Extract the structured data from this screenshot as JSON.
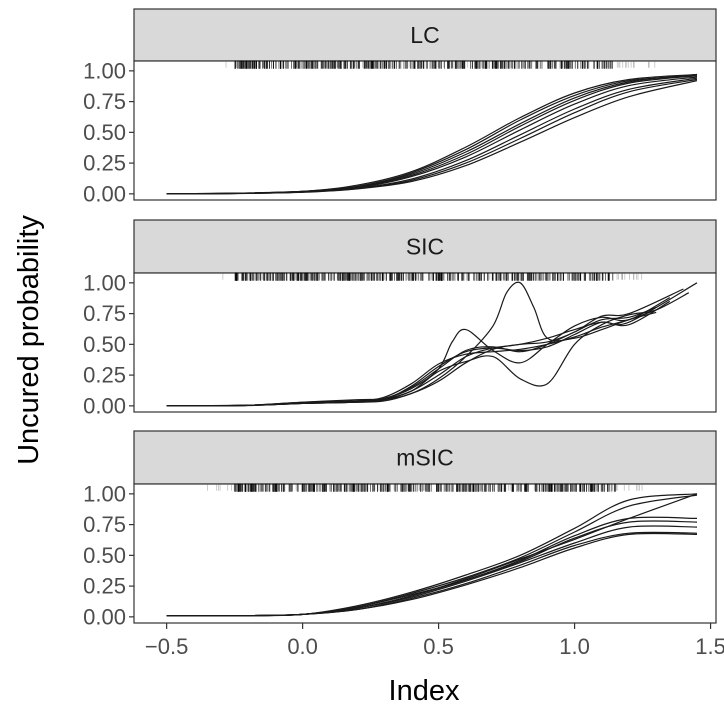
{
  "chart_data": {
    "type": "line",
    "xlabel": "Index",
    "ylabel": "Uncured probability",
    "xlim": [
      -0.62,
      1.52
    ],
    "ylim": [
      -0.05,
      1.08
    ],
    "x_ticks": [
      -0.5,
      0.0,
      0.5,
      1.0,
      1.5
    ],
    "x_tick_labels": [
      "−0.5",
      "0.0",
      "0.5",
      "1.0",
      "1.5"
    ],
    "y_ticks": [
      0.0,
      0.25,
      0.5,
      0.75,
      1.0
    ],
    "y_tick_labels": [
      "0.00",
      "0.25",
      "0.50",
      "0.75",
      "1.00"
    ],
    "grid": false,
    "rug": {
      "y": 1.05,
      "sparse_range": [
        -0.3,
        1.3
      ],
      "dense_range": [
        -0.25,
        1.15
      ]
    },
    "panels": [
      {
        "label": "LC",
        "rug_dense_range": [
          -0.25,
          1.15
        ],
        "rug_sparse_range": [
          -0.3,
          1.3
        ],
        "series": [
          {
            "x": [
              -0.5,
              -0.25,
              0.0,
              0.2,
              0.4,
              0.6,
              0.8,
              1.0,
              1.2,
              1.45
            ],
            "values": [
              0.0,
              0.005,
              0.02,
              0.07,
              0.18,
              0.38,
              0.62,
              0.82,
              0.93,
              0.97
            ]
          },
          {
            "x": [
              -0.5,
              -0.25,
              0.0,
              0.2,
              0.4,
              0.6,
              0.8,
              1.0,
              1.2,
              1.45
            ],
            "values": [
              0.0,
              0.005,
              0.02,
              0.06,
              0.17,
              0.36,
              0.6,
              0.8,
              0.92,
              0.96
            ]
          },
          {
            "x": [
              -0.5,
              -0.25,
              0.0,
              0.2,
              0.4,
              0.6,
              0.8,
              1.0,
              1.2,
              1.45
            ],
            "values": [
              0.0,
              0.004,
              0.02,
              0.06,
              0.16,
              0.34,
              0.57,
              0.78,
              0.91,
              0.97
            ]
          },
          {
            "x": [
              -0.5,
              -0.25,
              0.0,
              0.2,
              0.4,
              0.6,
              0.8,
              1.0,
              1.2,
              1.45
            ],
            "values": [
              0.0,
              0.004,
              0.018,
              0.055,
              0.15,
              0.32,
              0.55,
              0.76,
              0.9,
              0.96
            ]
          },
          {
            "x": [
              -0.5,
              -0.25,
              0.0,
              0.2,
              0.4,
              0.6,
              0.8,
              1.0,
              1.2,
              1.45
            ],
            "values": [
              0.0,
              0.004,
              0.017,
              0.05,
              0.14,
              0.3,
              0.52,
              0.73,
              0.88,
              0.95
            ]
          },
          {
            "x": [
              -0.5,
              -0.25,
              0.0,
              0.2,
              0.4,
              0.6,
              0.8,
              1.0,
              1.2,
              1.45
            ],
            "values": [
              0.0,
              0.003,
              0.015,
              0.045,
              0.12,
              0.27,
              0.48,
              0.69,
              0.85,
              0.94
            ]
          },
          {
            "x": [
              -0.5,
              -0.25,
              0.0,
              0.2,
              0.4,
              0.6,
              0.8,
              1.0,
              1.2,
              1.45
            ],
            "values": [
              0.0,
              0.003,
              0.014,
              0.042,
              0.11,
              0.25,
              0.45,
              0.66,
              0.83,
              0.93
            ]
          },
          {
            "x": [
              -0.5,
              -0.25,
              0.0,
              0.2,
              0.4,
              0.6,
              0.8,
              1.0,
              1.2,
              1.45
            ],
            "values": [
              0.0,
              0.003,
              0.013,
              0.04,
              0.1,
              0.23,
              0.42,
              0.62,
              0.79,
              0.92
            ]
          }
        ]
      },
      {
        "label": "SIC",
        "rug_dense_range": [
          -0.25,
          1.15
        ],
        "rug_sparse_range": [
          -0.3,
          1.3
        ],
        "series": [
          {
            "x": [
              -0.5,
              -0.2,
              0.0,
              0.2,
              0.3,
              0.4,
              0.5,
              0.6,
              0.7,
              0.8,
              0.9,
              1.0,
              1.1,
              1.2,
              1.3
            ],
            "values": [
              0.0,
              0.005,
              0.03,
              0.04,
              0.06,
              0.15,
              0.3,
              0.45,
              0.48,
              0.44,
              0.5,
              0.6,
              0.7,
              0.72,
              0.8
            ]
          },
          {
            "x": [
              -0.5,
              -0.2,
              0.0,
              0.2,
              0.3,
              0.4,
              0.5,
              0.6,
              0.7,
              0.8,
              0.9,
              1.0,
              1.1,
              1.2,
              1.35
            ],
            "values": [
              0.0,
              0.005,
              0.02,
              0.03,
              0.05,
              0.12,
              0.25,
              0.4,
              0.47,
              0.5,
              0.55,
              0.62,
              0.68,
              0.66,
              0.85
            ]
          },
          {
            "x": [
              -0.5,
              -0.2,
              0.0,
              0.2,
              0.3,
              0.4,
              0.5,
              0.55,
              0.6,
              0.7,
              0.8,
              0.9,
              1.0,
              1.1,
              1.2,
              1.35
            ],
            "values": [
              0.0,
              0.004,
              0.025,
              0.035,
              0.06,
              0.14,
              0.3,
              0.52,
              0.62,
              0.45,
              0.35,
              0.5,
              0.65,
              0.72,
              0.7,
              0.88
            ]
          },
          {
            "x": [
              -0.5,
              -0.2,
              0.0,
              0.2,
              0.3,
              0.4,
              0.5,
              0.6,
              0.7,
              0.8,
              0.9,
              1.0,
              1.1,
              1.2,
              1.4
            ],
            "values": [
              0.0,
              0.003,
              0.02,
              0.03,
              0.04,
              0.1,
              0.2,
              0.35,
              0.46,
              0.5,
              0.52,
              0.6,
              0.73,
              0.75,
              0.95
            ]
          },
          {
            "x": [
              -0.5,
              -0.2,
              0.0,
              0.2,
              0.3,
              0.4,
              0.5,
              0.6,
              0.7,
              0.8,
              0.9,
              1.0,
              1.1,
              1.2,
              1.3
            ],
            "values": [
              0.0,
              0.004,
              0.02,
              0.04,
              0.07,
              0.18,
              0.34,
              0.42,
              0.44,
              0.46,
              0.5,
              0.56,
              0.64,
              0.7,
              0.78
            ]
          },
          {
            "x": [
              -0.5,
              -0.2,
              0.0,
              0.2,
              0.3,
              0.4,
              0.5,
              0.6,
              0.7,
              0.75,
              0.8,
              0.85,
              0.9,
              1.0,
              1.1,
              1.2,
              1.3
            ],
            "values": [
              0.0,
              0.004,
              0.025,
              0.035,
              0.05,
              0.1,
              0.22,
              0.4,
              0.65,
              0.92,
              1.0,
              0.8,
              0.55,
              0.55,
              0.62,
              0.7,
              0.76
            ]
          },
          {
            "x": [
              -0.5,
              -0.2,
              0.0,
              0.2,
              0.3,
              0.4,
              0.5,
              0.6,
              0.7,
              0.8,
              0.9,
              1.0,
              1.1,
              1.2,
              1.3,
              1.42
            ],
            "values": [
              0.0,
              0.005,
              0.03,
              0.05,
              0.06,
              0.12,
              0.28,
              0.36,
              0.4,
              0.22,
              0.18,
              0.5,
              0.66,
              0.74,
              0.78,
              0.92
            ]
          },
          {
            "x": [
              -0.5,
              -0.2,
              0.0,
              0.2,
              0.3,
              0.4,
              0.5,
              0.6,
              0.7,
              0.8,
              0.9,
              1.0,
              1.1,
              1.2,
              1.45
            ],
            "values": [
              0.0,
              0.004,
              0.02,
              0.03,
              0.05,
              0.16,
              0.32,
              0.44,
              0.47,
              0.45,
              0.48,
              0.58,
              0.68,
              0.68,
              1.0
            ]
          }
        ]
      },
      {
        "label": "mSIC",
        "rug_dense_range": [
          -0.25,
          1.15
        ],
        "rug_sparse_range": [
          -0.35,
          1.25
        ],
        "series": [
          {
            "x": [
              -0.5,
              -0.2,
              0.0,
              0.2,
              0.4,
              0.6,
              0.8,
              1.0,
              1.2,
              1.45
            ],
            "values": [
              0.01,
              0.01,
              0.02,
              0.09,
              0.2,
              0.34,
              0.5,
              0.72,
              0.95,
              1.0
            ]
          },
          {
            "x": [
              -0.5,
              -0.2,
              0.0,
              0.2,
              0.4,
              0.6,
              0.8,
              1.0,
              1.2,
              1.45
            ],
            "values": [
              0.01,
              0.01,
              0.02,
              0.08,
              0.19,
              0.32,
              0.48,
              0.69,
              0.9,
              0.99
            ]
          },
          {
            "x": [
              -0.5,
              -0.2,
              0.0,
              0.2,
              0.4,
              0.6,
              0.8,
              1.0,
              1.2,
              1.45
            ],
            "values": [
              0.01,
              0.01,
              0.02,
              0.08,
              0.18,
              0.3,
              0.46,
              0.66,
              0.8,
              0.8
            ]
          },
          {
            "x": [
              -0.5,
              -0.2,
              0.0,
              0.2,
              0.4,
              0.6,
              0.8,
              1.0,
              1.2,
              1.45
            ],
            "values": [
              0.01,
              0.01,
              0.02,
              0.07,
              0.17,
              0.3,
              0.45,
              0.64,
              0.77,
              0.77
            ]
          },
          {
            "x": [
              -0.5,
              -0.2,
              0.0,
              0.2,
              0.4,
              0.6,
              0.8,
              1.0,
              1.2,
              1.45
            ],
            "values": [
              0.01,
              0.01,
              0.02,
              0.07,
              0.16,
              0.29,
              0.44,
              0.6,
              0.73,
              0.73
            ]
          },
          {
            "x": [
              -0.5,
              -0.2,
              0.0,
              0.2,
              0.4,
              0.6,
              0.8,
              1.0,
              1.2,
              1.45
            ],
            "values": [
              0.01,
              0.01,
              0.02,
              0.06,
              0.15,
              0.27,
              0.42,
              0.58,
              0.68,
              0.68
            ]
          },
          {
            "x": [
              -0.5,
              -0.2,
              0.0,
              0.2,
              0.4,
              0.6,
              0.8,
              1.0,
              1.2,
              1.45
            ],
            "values": [
              0.01,
              0.01,
              0.02,
              0.06,
              0.14,
              0.26,
              0.4,
              0.56,
              0.67,
              0.67
            ]
          },
          {
            "x": [
              -0.5,
              -0.2,
              0.0,
              0.2,
              0.4,
              0.6,
              0.8,
              1.0,
              1.2,
              1.45
            ],
            "values": [
              0.01,
              0.01,
              0.02,
              0.07,
              0.17,
              0.31,
              0.47,
              0.63,
              0.8,
              1.0
            ]
          }
        ]
      }
    ]
  }
}
